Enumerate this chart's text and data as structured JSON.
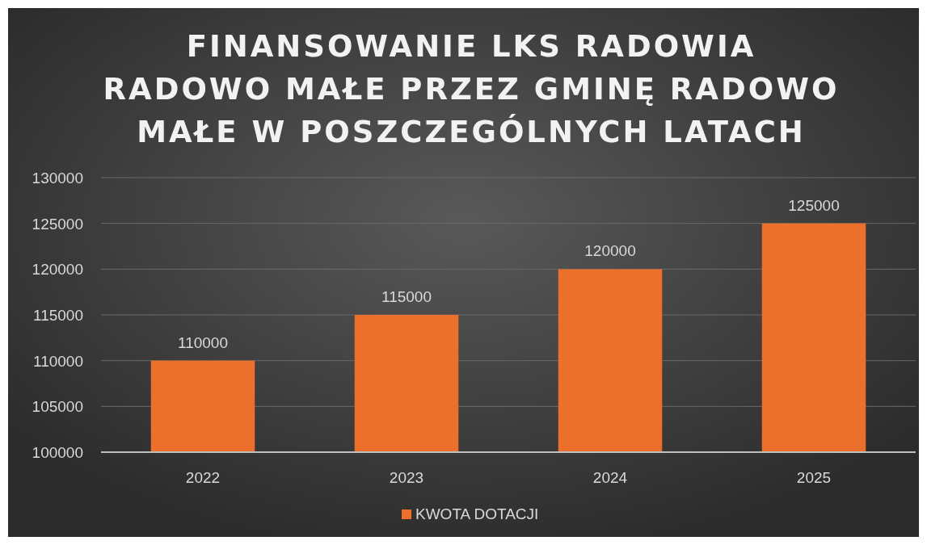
{
  "chart_data": {
    "type": "bar",
    "title": "FINANSOWANIE LKS RADOWIA RADOWO MAŁE PRZEZ GMINĘ RADOWO MAŁE W POSZCZEGÓLNYCH LATACH",
    "categories": [
      "2022",
      "2023",
      "2024",
      "2025"
    ],
    "series": [
      {
        "name": "KWOTA DOTACJI",
        "color": "#ec6f2c",
        "values": [
          110000,
          115000,
          120000,
          125000
        ]
      }
    ],
    "ylim": [
      100000,
      130000
    ],
    "yticks": [
      100000,
      105000,
      110000,
      115000,
      120000,
      125000,
      130000
    ],
    "grid": "y",
    "legend": "bottom",
    "data_labels": true
  }
}
